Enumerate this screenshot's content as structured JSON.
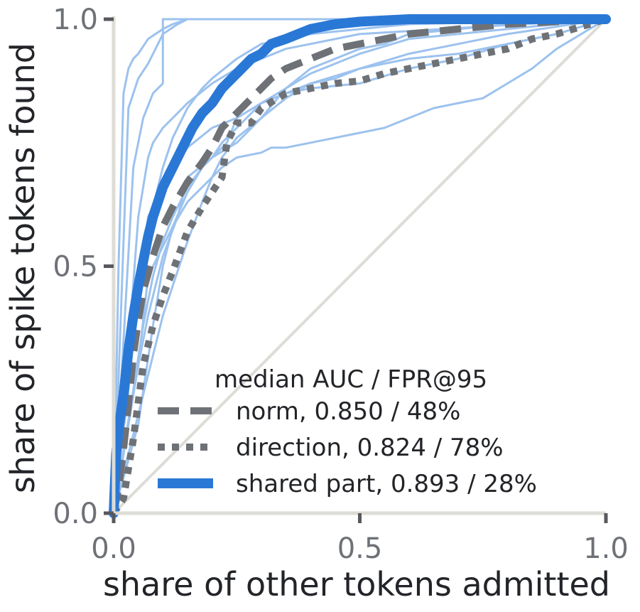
{
  "chart_data": {
    "type": "line",
    "title": "",
    "xlabel": "share of other tokens admitted",
    "ylabel": "share of spike tokens found",
    "xlim": [
      0,
      1
    ],
    "ylim": [
      0,
      1
    ],
    "xticks": [
      "0.0",
      "0.5",
      "1.0"
    ],
    "yticks": [
      "0.0",
      "0.5",
      "1.0"
    ],
    "grid": false,
    "diagonal_reference": true,
    "legend": {
      "title": "median AUC / FPR@95",
      "position": "bottom-right"
    },
    "colors": {
      "norm": "#6e7176",
      "direction": "#6e7176",
      "shared": "#2a78d6",
      "thin": "#9cc2ee",
      "diagonal": "#dedcd6",
      "axis": "#dedcd6"
    },
    "series": [
      {
        "name": "norm, 0.850 / 48%",
        "style": "dashed",
        "x": [
          0,
          0.01,
          0.02,
          0.03,
          0.04,
          0.05,
          0.06,
          0.08,
          0.1,
          0.12,
          0.15,
          0.18,
          0.2,
          0.22,
          0.25,
          0.28,
          0.3,
          0.32,
          0.35,
          0.4,
          0.45,
          0.5,
          0.55,
          0.6,
          0.65,
          0.7,
          0.8,
          0.9,
          1.0
        ],
        "y": [
          0,
          0.05,
          0.13,
          0.22,
          0.32,
          0.39,
          0.45,
          0.52,
          0.58,
          0.62,
          0.67,
          0.71,
          0.74,
          0.78,
          0.81,
          0.84,
          0.86,
          0.88,
          0.9,
          0.92,
          0.94,
          0.95,
          0.96,
          0.97,
          0.975,
          0.98,
          0.99,
          0.995,
          1.0
        ]
      },
      {
        "name": "direction, 0.824 / 78%",
        "style": "dotted",
        "x": [
          0,
          0.02,
          0.04,
          0.06,
          0.08,
          0.1,
          0.12,
          0.15,
          0.18,
          0.2,
          0.22,
          0.23,
          0.25,
          0.28,
          0.3,
          0.35,
          0.4,
          0.45,
          0.5,
          0.55,
          0.6,
          0.65,
          0.7,
          0.75,
          0.8,
          0.85,
          0.9,
          0.95,
          1.0
        ],
        "y": [
          0,
          0.03,
          0.15,
          0.3,
          0.38,
          0.44,
          0.49,
          0.57,
          0.62,
          0.65,
          0.68,
          0.75,
          0.79,
          0.79,
          0.82,
          0.85,
          0.86,
          0.87,
          0.875,
          0.89,
          0.9,
          0.91,
          0.92,
          0.93,
          0.94,
          0.96,
          0.97,
          0.985,
          1.0
        ]
      },
      {
        "name": "shared part, 0.893 / 28%",
        "style": "solid-thick",
        "x": [
          0,
          0.005,
          0.01,
          0.02,
          0.03,
          0.04,
          0.05,
          0.06,
          0.07,
          0.08,
          0.09,
          0.1,
          0.12,
          0.14,
          0.16,
          0.18,
          0.2,
          0.22,
          0.24,
          0.26,
          0.28,
          0.3,
          0.32,
          0.35,
          0.4,
          0.45,
          0.5,
          0.6,
          0.7,
          0.8,
          0.9,
          1.0
        ],
        "y": [
          0,
          0.12,
          0.17,
          0.24,
          0.33,
          0.4,
          0.46,
          0.51,
          0.56,
          0.6,
          0.63,
          0.66,
          0.7,
          0.74,
          0.78,
          0.81,
          0.83,
          0.86,
          0.88,
          0.9,
          0.92,
          0.93,
          0.95,
          0.96,
          0.98,
          0.99,
          0.995,
          1.0,
          1.0,
          1.0,
          1.0,
          1.0
        ]
      }
    ],
    "individual_curves": [
      {
        "x": [
          0,
          0.01,
          0.02,
          0.03,
          0.04,
          0.05,
          0.07,
          0.1,
          0.12,
          0.15,
          1.0
        ],
        "y": [
          0,
          0.5,
          0.85,
          0.9,
          0.92,
          0.93,
          0.96,
          0.98,
          0.99,
          1.0,
          1.0
        ]
      },
      {
        "x": [
          0,
          0.02,
          0.03,
          0.05,
          0.07,
          0.09,
          0.1,
          0.13,
          0.15,
          0.2,
          1.0
        ],
        "y": [
          0,
          0.55,
          0.82,
          0.88,
          0.91,
          0.95,
          0.97,
          0.99,
          1.0,
          1.0,
          1.0
        ]
      },
      {
        "x": [
          0,
          0.03,
          0.05,
          0.08,
          0.1,
          0.12,
          0.15,
          0.18,
          0.2,
          0.25,
          0.3,
          0.4,
          0.6,
          1.0
        ],
        "y": [
          0,
          0.28,
          0.45,
          0.62,
          0.7,
          0.76,
          0.82,
          0.86,
          0.88,
          0.92,
          0.95,
          0.97,
          0.99,
          1.0
        ]
      },
      {
        "x": [
          0,
          0.04,
          0.06,
          0.08,
          0.1,
          0.12,
          0.15,
          0.18,
          0.2,
          0.22,
          0.25,
          0.3,
          0.4,
          0.5,
          0.6,
          1.0
        ],
        "y": [
          0,
          0.25,
          0.38,
          0.48,
          0.55,
          0.6,
          0.66,
          0.7,
          0.72,
          0.75,
          0.78,
          0.83,
          0.89,
          0.93,
          0.96,
          1.0
        ]
      },
      {
        "x": [
          0,
          0.05,
          0.08,
          0.1,
          0.12,
          0.15,
          0.2,
          0.22,
          0.25,
          0.3,
          0.35,
          0.4,
          0.5,
          0.6,
          0.7,
          0.8,
          1.0
        ],
        "y": [
          0,
          0.18,
          0.38,
          0.5,
          0.58,
          0.63,
          0.68,
          0.72,
          0.76,
          0.8,
          0.84,
          0.87,
          0.9,
          0.93,
          0.95,
          0.97,
          1.0
        ]
      },
      {
        "x": [
          0,
          0.05,
          0.1,
          0.15,
          0.18,
          0.2,
          0.22,
          0.25,
          0.3,
          0.32,
          0.35,
          0.4,
          0.45,
          0.5,
          0.55,
          0.6,
          0.65,
          0.7,
          0.75,
          0.8,
          0.85,
          0.9,
          1.0
        ],
        "y": [
          0,
          0.2,
          0.4,
          0.55,
          0.63,
          0.68,
          0.7,
          0.72,
          0.73,
          0.74,
          0.74,
          0.75,
          0.76,
          0.77,
          0.78,
          0.8,
          0.82,
          0.83,
          0.84,
          0.87,
          0.9,
          0.94,
          1.0
        ]
      },
      {
        "x": [
          0,
          0.03,
          0.05,
          0.07,
          0.1,
          0.13,
          0.15,
          0.2,
          0.25,
          0.3,
          0.35,
          0.4,
          0.5,
          0.6,
          0.7,
          0.8,
          0.9,
          1.0
        ],
        "y": [
          0,
          0.25,
          0.45,
          0.6,
          0.66,
          0.71,
          0.74,
          0.78,
          0.8,
          0.83,
          0.85,
          0.86,
          0.87,
          0.9,
          0.92,
          0.95,
          0.97,
          1.0
        ]
      },
      {
        "x": [
          0,
          0.02,
          0.04,
          0.06,
          0.08,
          0.1,
          0.1,
          0.15,
          0.2,
          0.25,
          0.28,
          0.3,
          0.35,
          0.4,
          0.5,
          1.0
        ],
        "y": [
          0,
          0.35,
          0.7,
          0.8,
          0.85,
          0.87,
          1.0,
          1.0,
          1.0,
          1.0,
          1.0,
          1.0,
          1.0,
          1.0,
          1.0,
          1.0
        ]
      },
      {
        "x": [
          0,
          0.02,
          0.05,
          0.07,
          0.08,
          0.1,
          0.12,
          0.15,
          0.2,
          0.25,
          0.3,
          0.35,
          0.4,
          0.5,
          1.0
        ],
        "y": [
          0,
          0.2,
          0.6,
          0.72,
          0.75,
          0.78,
          0.8,
          0.83,
          0.87,
          0.9,
          0.92,
          0.94,
          0.95,
          0.97,
          1.0
        ]
      },
      {
        "x": [
          0,
          0.05,
          0.07,
          0.1,
          0.13,
          0.15,
          0.2,
          0.25,
          0.3,
          0.35,
          0.4,
          0.45,
          0.5,
          0.55,
          0.6,
          0.7,
          0.8,
          1.0
        ],
        "y": [
          0,
          0.3,
          0.4,
          0.52,
          0.6,
          0.68,
          0.72,
          0.75,
          0.8,
          0.86,
          0.9,
          0.92,
          0.94,
          0.95,
          0.97,
          0.98,
          0.99,
          1.0
        ]
      },
      {
        "x": [
          0,
          0.05,
          0.07,
          0.1,
          0.12,
          0.15,
          0.18,
          0.2,
          0.23,
          0.25,
          0.3,
          0.35,
          0.4,
          0.45,
          0.5,
          0.6,
          0.7,
          0.8,
          0.9,
          1.0
        ],
        "y": [
          0,
          0.3,
          0.48,
          0.54,
          0.58,
          0.65,
          0.7,
          0.72,
          0.75,
          0.8,
          0.83,
          0.85,
          0.87,
          0.88,
          0.9,
          0.92,
          0.93,
          0.95,
          0.97,
          1.0
        ]
      }
    ]
  }
}
